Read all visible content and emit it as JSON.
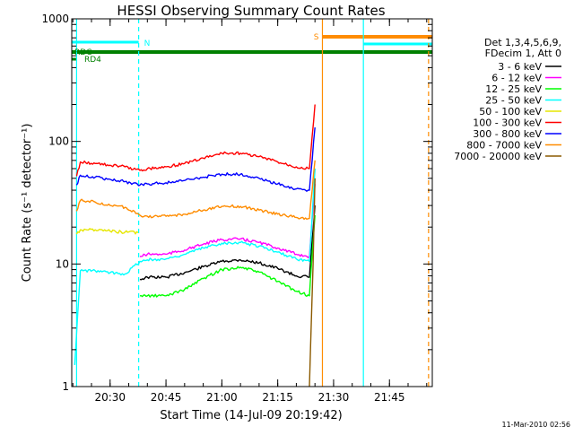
{
  "chart_data": {
    "type": "line",
    "title": "HESSI Observing Summary Count Rates",
    "xlabel": "Start Time (14-Jul-09 20:19:42)",
    "ylabel": "Count Rate (s⁻¹ detector⁻¹)",
    "xscale": "time",
    "yscale": "log",
    "xlim": [
      "20:19:42",
      "21:56:30"
    ],
    "ylim": [
      1,
      1000
    ],
    "x_ticks": [
      "20:30",
      "20:45",
      "21:00",
      "21:15",
      "21:30",
      "21:45"
    ],
    "y_ticks": [
      "1",
      "10",
      "100",
      "1000"
    ],
    "legend_title": [
      "Det 1,3,4,5,6,9,",
      "FDecim 1, Att 0"
    ],
    "legend_placement": "right",
    "grid": false,
    "series": [
      {
        "name": "3 - 6 keV",
        "color": "#000000",
        "x": [
          "20:38:00",
          "20:40:00",
          "20:45:00",
          "20:50:00",
          "20:55:00",
          "21:00:00",
          "21:05:00",
          "21:10:00",
          "21:15:00",
          "21:20:00",
          "21:23:30",
          "21:25:00"
        ],
        "y": [
          7.5,
          7.8,
          7.8,
          8.5,
          9.5,
          10.5,
          10.8,
          10.2,
          9.2,
          8.0,
          7.8,
          30
        ]
      },
      {
        "name": "6 - 12 keV",
        "color": "#ff00ff",
        "x": [
          "20:38:00",
          "20:40:00",
          "20:45:00",
          "20:50:00",
          "20:55:00",
          "21:00:00",
          "21:05:00",
          "21:10:00",
          "21:15:00",
          "21:20:00",
          "21:23:30",
          "21:25:00"
        ],
        "y": [
          11.5,
          12,
          12,
          13,
          14.5,
          15.8,
          16,
          15,
          13.5,
          12,
          11.5,
          45
        ]
      },
      {
        "name": "12 - 25 keV",
        "color": "#00ff00",
        "x": [
          "20:38:00",
          "20:40:00",
          "20:45:00",
          "20:50:00",
          "20:55:00",
          "21:00:00",
          "21:05:00",
          "21:10:00",
          "21:15:00",
          "21:20:00",
          "21:23:30",
          "21:25:00"
        ],
        "y": [
          5.5,
          5.5,
          5.5,
          6.2,
          7.6,
          9.0,
          9.4,
          8.6,
          7.2,
          6.0,
          5.5,
          25
        ]
      },
      {
        "name": "25 - 50 keV",
        "color": "#00ffff",
        "x": [
          "20:20:30",
          "20:22:00",
          "20:26:00",
          "20:30:00",
          "20:34:00",
          "20:38:00",
          "20:40:00",
          "20:45:00",
          "20:50:00",
          "20:55:00",
          "21:00:00",
          "21:05:00",
          "21:10:00",
          "21:15:00",
          "21:20:00",
          "21:23:30",
          "21:25:00"
        ],
        "y": [
          1.5,
          8.8,
          8.8,
          8.5,
          8.3,
          10.5,
          10.8,
          11,
          12,
          13.5,
          14.8,
          15,
          14,
          12.5,
          11,
          10.5,
          60
        ]
      },
      {
        "name": "50 - 100 keV",
        "color": "#e6e600",
        "x": [
          "20:21:00",
          "20:22:00",
          "20:26:00",
          "20:30:00",
          "20:34:00",
          "20:37:30"
        ],
        "y": [
          17.5,
          19,
          19,
          18.5,
          18.2,
          18
        ]
      },
      {
        "name": "100 - 300 keV",
        "color": "#ff0000",
        "x": [
          "20:21:00",
          "20:22:00",
          "20:26:00",
          "20:30:00",
          "20:34:00",
          "20:38:00",
          "20:40:00",
          "20:45:00",
          "20:50:00",
          "20:55:00",
          "21:00:00",
          "21:05:00",
          "21:10:00",
          "21:15:00",
          "21:20:00",
          "21:23:30",
          "21:25:00"
        ],
        "y": [
          52,
          68,
          66,
          64,
          62,
          58,
          60,
          62,
          66,
          73,
          80,
          80,
          75,
          68,
          62,
          60,
          200
        ]
      },
      {
        "name": "300 - 800 keV",
        "color": "#0000ff",
        "x": [
          "20:21:00",
          "20:22:00",
          "20:26:00",
          "20:30:00",
          "20:34:00",
          "20:38:00",
          "20:40:00",
          "20:45:00",
          "20:50:00",
          "20:55:00",
          "21:00:00",
          "21:05:00",
          "21:10:00",
          "21:15:00",
          "21:20:00",
          "21:23:30",
          "21:25:00"
        ],
        "y": [
          44,
          53,
          51,
          49,
          47,
          44,
          45,
          46,
          48,
          51,
          54,
          54,
          50,
          45,
          41,
          40,
          130
        ]
      },
      {
        "name": "800 - 7000 keV",
        "color": "#ff8c00",
        "x": [
          "20:21:00",
          "20:22:00",
          "20:26:00",
          "20:30:00",
          "20:34:00",
          "20:38:00",
          "20:40:00",
          "20:45:00",
          "20:50:00",
          "20:55:00",
          "21:00:00",
          "21:05:00",
          "21:10:00",
          "21:15:00",
          "21:20:00",
          "21:23:30",
          "21:25:00"
        ],
        "y": [
          27,
          33,
          32,
          30,
          29,
          25,
          24.5,
          24.5,
          25.5,
          27.5,
          29.5,
          29.5,
          27.5,
          25.5,
          24,
          23.5,
          70
        ]
      },
      {
        "name": "7000 - 20000 keV",
        "color": "#8b5a00",
        "x": [
          "21:23:30",
          "21:24:30",
          "21:25:00"
        ],
        "y": [
          1,
          10,
          50
        ]
      }
    ],
    "observing_flags": [
      {
        "label": "N",
        "color": "#00ffff",
        "x_start": "20:19:42",
        "x_end": "20:37:40"
      },
      {
        "label": "S",
        "color": "#ff8c00",
        "x_start": "21:27:00",
        "x_end": "21:56:30"
      },
      {
        "label": "",
        "color": "#00ffff",
        "x_start": "21:38:00",
        "x_end": "21:56:30"
      },
      {
        "label": "RDC",
        "color": "#008000",
        "x_start": "20:19:42",
        "x_end": "21:56:30"
      },
      {
        "label": "RD4",
        "color": "#008000",
        "x_start": "20:19:42",
        "x_end": "20:21:00"
      }
    ],
    "vertical_markers": [
      {
        "x": "20:37:40",
        "color": "#00ffff",
        "style": "dashed"
      },
      {
        "x": "21:27:00",
        "color": "#ff8c00",
        "style": "solid"
      },
      {
        "x": "21:38:00",
        "color": "#00ffff",
        "style": "solid"
      },
      {
        "x": "21:55:30",
        "color": "#ff8c00",
        "style": "dashed"
      },
      {
        "x": "20:21:00",
        "color": "#00ffff",
        "style": "solid"
      }
    ]
  },
  "footer": {
    "timestamp": "11-Mar-2010 02:56"
  }
}
